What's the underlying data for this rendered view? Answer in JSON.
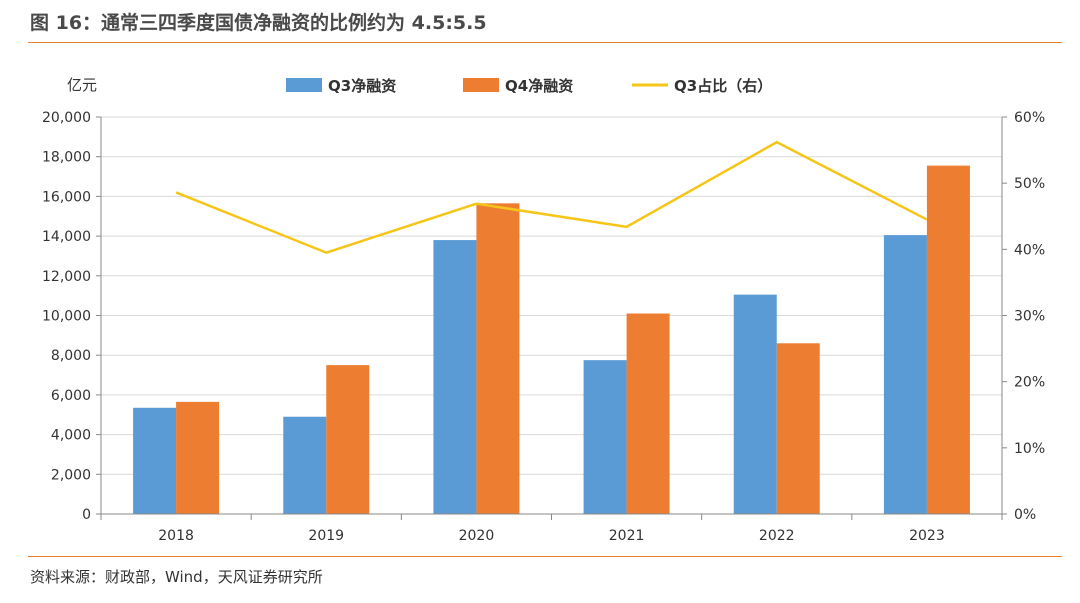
{
  "header": {
    "title": "图 16：通常三四季度国债净融资的比例约为 4.5:5.5"
  },
  "footer": {
    "source": "资料来源：财政部，Wind，天风证券研究所"
  },
  "colors": {
    "q3": "#5b9bd5",
    "q4": "#ed7d31",
    "ratio": "#f5c518",
    "accent_rule": "#e87f2f",
    "axis": "#888888",
    "grid": "#d9d9d9"
  },
  "chart_data": {
    "type": "bar",
    "categories": [
      "2018",
      "2019",
      "2020",
      "2021",
      "2022",
      "2023"
    ],
    "left_axis": {
      "unit_label": "亿元",
      "ylim": [
        0,
        20000
      ],
      "ticks": [
        "0",
        "2,000",
        "4,000",
        "6,000",
        "8,000",
        "10,000",
        "12,000",
        "14,000",
        "16,000",
        "18,000",
        "20,000"
      ]
    },
    "right_axis": {
      "ylim": [
        0,
        60
      ],
      "ticks": [
        "0%",
        "10%",
        "20%",
        "30%",
        "40%",
        "50%",
        "60%"
      ]
    },
    "series": [
      {
        "name": "Q3净融资",
        "type": "bar",
        "axis": "left",
        "values": [
          5350,
          4900,
          13800,
          7750,
          11050,
          14050
        ]
      },
      {
        "name": "Q4净融资",
        "type": "bar",
        "axis": "left",
        "values": [
          5650,
          7500,
          15650,
          10100,
          8600,
          17550
        ]
      },
      {
        "name": "Q3占比（右）",
        "type": "line",
        "axis": "right",
        "values": [
          48.6,
          39.5,
          46.9,
          43.4,
          56.2,
          44.5
        ]
      }
    ],
    "grid": true,
    "legend": "top-center"
  }
}
